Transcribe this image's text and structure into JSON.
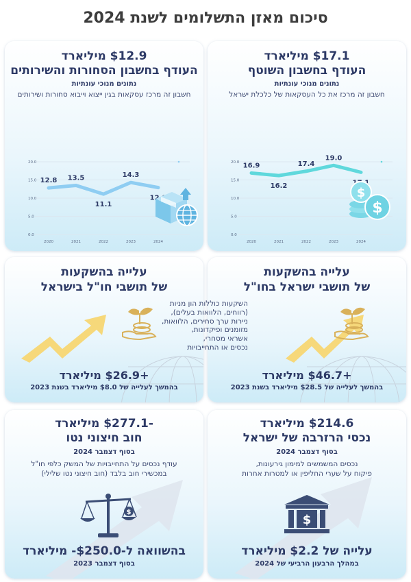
{
  "page_title": "סיכום מאזן התשלומים לשנת 2024",
  "current_account": {
    "amount": "$17.1 מיליארד",
    "title": "העודף בחשבון השוטף",
    "subtitle": "נתונים מנוכי עונתיות",
    "description": "חשבון זה מרכז את כל העסקאות של כלכלת ישראל",
    "icon": "coins-dollar-icon"
  },
  "trade_account": {
    "amount": "$12.9 מיליארד",
    "title": "העודף בחשבון הסחורות והשירותים",
    "subtitle": "נתונים מנוכי עונתיות",
    "description": "חשבון זה מרכז עסקאות בגין ייצוא וייבוא סחורות ושירותים",
    "icon": "box-globe-icon"
  },
  "chart_data": [
    {
      "type": "line",
      "x": [
        "2020",
        "2021",
        "2022",
        "2023",
        "2024"
      ],
      "values": [
        16.9,
        16.2,
        17.4,
        19.0,
        17.1
      ],
      "value_labels": [
        "16.9",
        "16.2",
        "17.4",
        "19.0",
        "17.1"
      ],
      "yticks": [
        "0.0",
        "5.0",
        "10.0",
        "15.0",
        "20.0"
      ],
      "ylim": [
        0,
        20
      ],
      "grid": true,
      "color": "#5fd8dc"
    },
    {
      "type": "line",
      "x": [
        "2020",
        "2021",
        "2022",
        "2023",
        "2024"
      ],
      "values": [
        12.8,
        13.5,
        11.1,
        14.3,
        12.9
      ],
      "value_labels": [
        "12.8",
        "13.5",
        "11.1",
        "14.3",
        "12.9"
      ],
      "yticks": [
        "0.0",
        "5.0",
        "10.0",
        "15.0",
        "20.0"
      ],
      "ylim": [
        0,
        20
      ],
      "grid": true,
      "color": "#8fcdf2"
    }
  ],
  "invest_abroad": {
    "title_line1": "עלייה בהשקעות",
    "title_line2": "של תושבי ישראל בחו\"ל",
    "amount": "+$46.7 מיליארד",
    "note": "בהמשך לעלייה של $28.5 מיליארד בשנת 2023",
    "icon": "hand-plant-coins-icon"
  },
  "invest_in_israel": {
    "title_line1": "עלייה בהשקעות",
    "title_line2": "של תושבי חו\"ל בישראל",
    "amount": "+$26.9 מיליארד",
    "note": "בהמשך לעלייה של $8.0 מיליארד בשנת 2023",
    "icon": "hand-plant-coins-icon"
  },
  "investments_description": [
    "השקעות כוללות הון מניות",
    "(רווחים, הלוואות בעלים),",
    "ניירות ערך סחירים, הלוואות,",
    "מזומנים ופיקדונות,",
    "אשראי מסחרי,",
    "נכסים או התחייבויות"
  ],
  "reserves": {
    "amount": "$214.6 מיליארד",
    "title": "נכסי הרזרבה של ישראל",
    "date": "בסוף דצמבר 2024",
    "description_line1": "נכסים המשמשים למימון גירעונות,",
    "description_line2": "פיקוח על שערי החליפין או למטרות אחרות",
    "change": "עלייה של $2.2 מיליארד",
    "change_note": "במהלך הרבעון הרביעי של 2024",
    "icon": "bank-dollar-icon"
  },
  "net_debt": {
    "amount": "-$277.1 מיליארד",
    "title": "חוב חיצוני נטו",
    "date": "בסוף דצמבר 2024",
    "description_line1": "עודף נכסים על התחייבויות של המשק כלפי חו\"ל",
    "description_line2": "במכשירי חוב בלבד (חוב חיצוני נטו שלילי)",
    "comparison": "בהשוואה ל-$250.0- מיליארד",
    "comparison_note": "בסוף דצמבר 2023",
    "icon": "balance-scale-icon"
  }
}
